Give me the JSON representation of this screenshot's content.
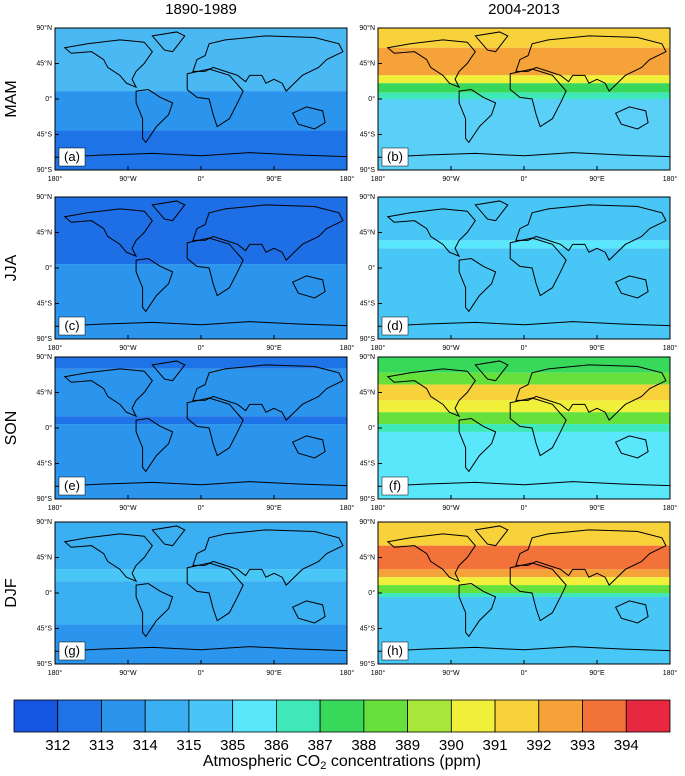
{
  "columns": [
    "1890-1989",
    "2004-2013"
  ],
  "rows": [
    "MAM",
    "JJA",
    "SON",
    "DJF"
  ],
  "lat_ticks": [
    "90°N",
    "45°N",
    "0°",
    "45°S",
    "90°S"
  ],
  "lon_ticks": [
    "180°",
    "90°W",
    "0°",
    "90°E",
    "180°"
  ],
  "panels": [
    {
      "label": "(a)",
      "bands": [
        {
          "lat": [
            90,
            10
          ],
          "color": "#4ab8f2"
        },
        {
          "lat": [
            10,
            -40
          ],
          "color": "#2b94ec"
        },
        {
          "lat": [
            -40,
            -90
          ],
          "color": "#1e74e6"
        }
      ]
    },
    {
      "label": "(b)",
      "bands": [
        {
          "lat": [
            90,
            65
          ],
          "color": "#f8d23a"
        },
        {
          "lat": [
            65,
            30
          ],
          "color": "#f5a238"
        },
        {
          "lat": [
            30,
            20
          ],
          "color": "#f0f03a"
        },
        {
          "lat": [
            20,
            8
          ],
          "color": "#38d95a"
        },
        {
          "lat": [
            8,
            0
          ],
          "color": "#3ee8b8"
        },
        {
          "lat": [
            0,
            -90
          ],
          "color": "#5ad0f8"
        }
      ]
    },
    {
      "label": "(c)",
      "bands": [
        {
          "lat": [
            90,
            5
          ],
          "color": "#1e6ee6"
        },
        {
          "lat": [
            5,
            -90
          ],
          "color": "#2b94ec"
        }
      ]
    },
    {
      "label": "(d)",
      "bands": [
        {
          "lat": [
            90,
            35
          ],
          "color": "#48c6f6"
        },
        {
          "lat": [
            35,
            25
          ],
          "color": "#5ae6fb"
        },
        {
          "lat": [
            25,
            -90
          ],
          "color": "#48c6f6"
        }
      ]
    },
    {
      "label": "(e)",
      "bands": [
        {
          "lat": [
            90,
            75
          ],
          "color": "#1e74e6"
        },
        {
          "lat": [
            75,
            15
          ],
          "color": "#2b94ec"
        },
        {
          "lat": [
            15,
            5
          ],
          "color": "#1e74e6"
        },
        {
          "lat": [
            5,
            -90
          ],
          "color": "#2b94ec"
        }
      ]
    },
    {
      "label": "(f)",
      "bands": [
        {
          "lat": [
            90,
            70
          ],
          "color": "#38d95a"
        },
        {
          "lat": [
            70,
            55
          ],
          "color": "#66e03a"
        },
        {
          "lat": [
            55,
            35
          ],
          "color": "#f8d23a"
        },
        {
          "lat": [
            35,
            20
          ],
          "color": "#f0f03a"
        },
        {
          "lat": [
            20,
            5
          ],
          "color": "#66e03a"
        },
        {
          "lat": [
            5,
            -5
          ],
          "color": "#3ee8b8"
        },
        {
          "lat": [
            -5,
            -90
          ],
          "color": "#5ae6fb"
        }
      ]
    },
    {
      "label": "(g)",
      "bands": [
        {
          "lat": [
            90,
            30
          ],
          "color": "#3aaff2"
        },
        {
          "lat": [
            30,
            15
          ],
          "color": "#48c6f6"
        },
        {
          "lat": [
            15,
            -40
          ],
          "color": "#3aaff2"
        },
        {
          "lat": [
            -40,
            -90
          ],
          "color": "#2b94ec"
        }
      ]
    },
    {
      "label": "(h)",
      "bands": [
        {
          "lat": [
            90,
            60
          ],
          "color": "#f8d23a"
        },
        {
          "lat": [
            60,
            30
          ],
          "color": "#f2723a"
        },
        {
          "lat": [
            30,
            20
          ],
          "color": "#f5a238"
        },
        {
          "lat": [
            20,
            10
          ],
          "color": "#f0f03a"
        },
        {
          "lat": [
            10,
            0
          ],
          "color": "#66e03a"
        },
        {
          "lat": [
            0,
            -5
          ],
          "color": "#3ee8b8"
        },
        {
          "lat": [
            -5,
            -90
          ],
          "color": "#48c6f6"
        }
      ]
    }
  ],
  "colorbar": {
    "colors": [
      "#1556e0",
      "#1e74e6",
      "#2b94ec",
      "#3aaff2",
      "#48c6f6",
      "#5ae6fb",
      "#3ee8b8",
      "#38d95a",
      "#66e03a",
      "#a8e83a",
      "#f0f03a",
      "#f8d23a",
      "#f5a238",
      "#f2723a",
      "#e8283e"
    ],
    "labels": [
      312,
      313,
      314,
      315,
      385,
      386,
      387,
      388,
      389,
      390,
      391,
      392,
      393,
      394
    ],
    "title": [
      "Atmospheric CO",
      "2",
      " concentrations (ppm)"
    ]
  }
}
